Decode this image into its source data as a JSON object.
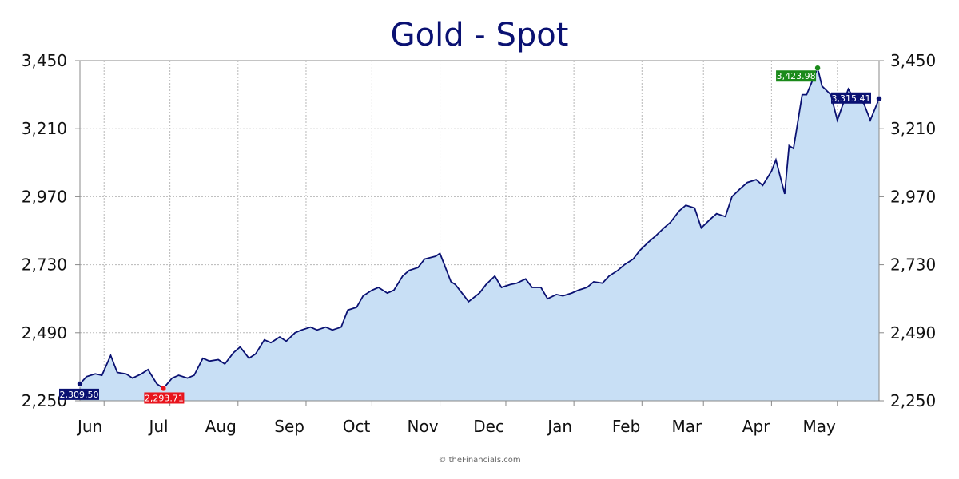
{
  "chart_data": {
    "type": "area",
    "title": "Gold - Spot",
    "xlabel": "",
    "ylabel": "",
    "ylim": [
      2250,
      3450
    ],
    "y_ticks": [
      "2,250",
      "2,490",
      "2,730",
      "2,970",
      "3,210",
      "3,450"
    ],
    "y_tick_values": [
      2250,
      2490,
      2730,
      2970,
      3210,
      3450
    ],
    "x_range": [
      "2024-05-21",
      "2025-05-20"
    ],
    "x_ticks": [
      {
        "label": "Jun",
        "date": "2024-06-01"
      },
      {
        "label": "Jul",
        "date": "2024-07-01"
      },
      {
        "label": "Aug",
        "date": "2024-08-01"
      },
      {
        "label": "Sep",
        "date": "2024-09-01"
      },
      {
        "label": "Oct",
        "date": "2024-10-01"
      },
      {
        "label": "Nov",
        "date": "2024-11-01"
      },
      {
        "label": "Dec",
        "date": "2024-12-01"
      },
      {
        "label": "Jan",
        "date": "2025-01-01"
      },
      {
        "label": "Feb",
        "date": "2025-02-01"
      },
      {
        "label": "Mar",
        "date": "2025-03-01"
      },
      {
        "label": "Apr",
        "date": "2025-04-01"
      },
      {
        "label": "May",
        "date": "2025-05-01"
      }
    ],
    "grid": true,
    "series": [
      {
        "color": "#0a1172",
        "fill": "#c8dff5",
        "x": [
          "2024-05-21",
          "2024-05-24",
          "2024-05-28",
          "2024-05-31",
          "2024-06-04",
          "2024-06-07",
          "2024-06-11",
          "2024-06-14",
          "2024-06-18",
          "2024-06-21",
          "2024-06-25",
          "2024-06-28",
          "2024-07-02",
          "2024-07-05",
          "2024-07-09",
          "2024-07-12",
          "2024-07-16",
          "2024-07-19",
          "2024-07-23",
          "2024-07-26",
          "2024-07-30",
          "2024-08-02",
          "2024-08-06",
          "2024-08-09",
          "2024-08-13",
          "2024-08-16",
          "2024-08-20",
          "2024-08-23",
          "2024-08-27",
          "2024-08-30",
          "2024-09-03",
          "2024-09-06",
          "2024-09-10",
          "2024-09-13",
          "2024-09-17",
          "2024-09-20",
          "2024-09-24",
          "2024-09-27",
          "2024-10-01",
          "2024-10-04",
          "2024-10-08",
          "2024-10-11",
          "2024-10-15",
          "2024-10-18",
          "2024-10-22",
          "2024-10-25",
          "2024-10-30",
          "2024-11-01",
          "2024-11-06",
          "2024-11-08",
          "2024-11-12",
          "2024-11-14",
          "2024-11-19",
          "2024-11-22",
          "2024-11-26",
          "2024-11-29",
          "2024-12-03",
          "2024-12-06",
          "2024-12-10",
          "2024-12-13",
          "2024-12-17",
          "2024-12-20",
          "2024-12-24",
          "2024-12-27",
          "2024-12-31",
          "2025-01-03",
          "2025-01-07",
          "2025-01-10",
          "2025-01-14",
          "2025-01-17",
          "2025-01-21",
          "2025-01-24",
          "2025-01-28",
          "2025-01-31",
          "2025-02-04",
          "2025-02-07",
          "2025-02-11",
          "2025-02-14",
          "2025-02-18",
          "2025-02-21",
          "2025-02-25",
          "2025-02-28",
          "2025-03-04",
          "2025-03-07",
          "2025-03-11",
          "2025-03-14",
          "2025-03-18",
          "2025-03-21",
          "2025-03-25",
          "2025-03-28",
          "2025-04-01",
          "2025-04-03",
          "2025-04-07",
          "2025-04-09",
          "2025-04-11",
          "2025-04-15",
          "2025-04-17",
          "2025-04-22",
          "2025-04-24",
          "2025-04-28",
          "2025-05-01",
          "2025-05-06",
          "2025-05-09",
          "2025-05-13",
          "2025-05-16",
          "2025-05-20"
        ],
        "y": [
          2309.5,
          2335,
          2345,
          2340,
          2410,
          2350,
          2345,
          2330,
          2345,
          2360,
          2310,
          2293.71,
          2330,
          2340,
          2330,
          2340,
          2400,
          2390,
          2395,
          2380,
          2420,
          2440,
          2400,
          2415,
          2465,
          2455,
          2475,
          2460,
          2490,
          2500,
          2510,
          2500,
          2510,
          2500,
          2510,
          2570,
          2580,
          2620,
          2640,
          2650,
          2630,
          2640,
          2690,
          2710,
          2720,
          2750,
          2760,
          2770,
          2670,
          2660,
          2620,
          2600,
          2630,
          2660,
          2690,
          2650,
          2660,
          2665,
          2680,
          2650,
          2650,
          2610,
          2625,
          2620,
          2630,
          2640,
          2650,
          2670,
          2665,
          2690,
          2710,
          2730,
          2750,
          2780,
          2810,
          2830,
          2860,
          2880,
          2920,
          2940,
          2930,
          2860,
          2890,
          2910,
          2900,
          2970,
          3000,
          3020,
          3030,
          3010,
          3060,
          3100,
          2980,
          3150,
          3140,
          3330,
          3330,
          3423.98,
          3360,
          3330,
          3240,
          3350,
          3310,
          3300,
          3240,
          3315.41
        ]
      }
    ],
    "annotations": [
      {
        "label": "2,309.50",
        "date": "2024-05-21",
        "value": 2309.5,
        "color": "#0a1172"
      },
      {
        "label": "2,293.71",
        "date": "2024-06-28",
        "value": 2293.71,
        "color": "#e8141c"
      },
      {
        "label": "3,423.98",
        "date": "2025-04-22",
        "value": 3423.98,
        "color": "#1a8a1a"
      },
      {
        "label": "3,315.41",
        "date": "2025-05-20",
        "value": 3315.41,
        "color": "#0a1172"
      }
    ]
  },
  "footer": {
    "copyright": "© theFinancials.com"
  }
}
